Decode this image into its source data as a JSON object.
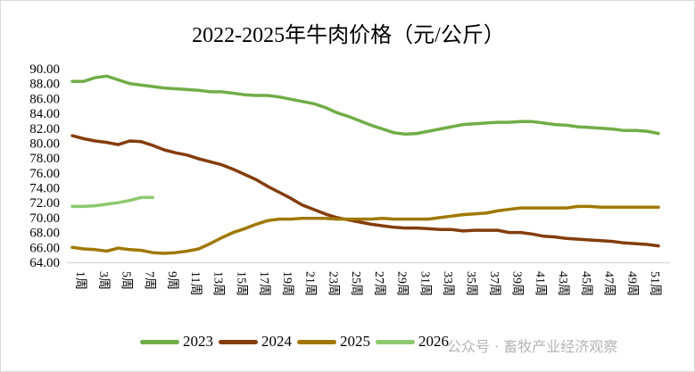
{
  "chart_data": {
    "type": "line",
    "title": "2022-2025年牛肉价格（元/公斤）",
    "xlabel": "",
    "ylabel": "",
    "ylim": [
      64,
      90
    ],
    "yticks": [
      "64.00",
      "66.00",
      "68.00",
      "70.00",
      "72.00",
      "74.00",
      "76.00",
      "78.00",
      "80.00",
      "82.00",
      "84.00",
      "86.00",
      "88.00",
      "90.00"
    ],
    "x_tick_labels": [
      "1周",
      "3周",
      "5周",
      "7周",
      "9周",
      "11周",
      "13周",
      "15周",
      "17周",
      "19周",
      "21周",
      "23周",
      "25周",
      "27周",
      "29周",
      "31周",
      "33周",
      "35周",
      "37周",
      "39周",
      "41周",
      "43周",
      "45周",
      "47周",
      "49周",
      "51周"
    ],
    "legend_position": "bottom",
    "series": [
      {
        "name": "2023",
        "color": "#70ad47",
        "values": [
          88.3,
          88.3,
          88.8,
          89.0,
          88.5,
          88.0,
          87.8,
          87.6,
          87.4,
          87.3,
          87.2,
          87.1,
          86.9,
          86.9,
          86.7,
          86.5,
          86.4,
          86.4,
          86.2,
          85.9,
          85.6,
          85.3,
          84.8,
          84.1,
          83.6,
          83.0,
          82.4,
          81.9,
          81.4,
          81.2,
          81.3,
          81.6,
          81.9,
          82.2,
          82.5,
          82.6,
          82.7,
          82.8,
          82.8,
          82.9,
          82.9,
          82.7,
          82.5,
          82.4,
          82.2,
          82.1,
          82.0,
          81.9,
          81.7,
          81.7,
          81.6,
          81.3
        ]
      },
      {
        "name": "2024",
        "color": "#843c0c",
        "values": [
          81.0,
          80.6,
          80.3,
          80.1,
          79.8,
          80.3,
          80.2,
          79.7,
          79.1,
          78.7,
          78.4,
          77.9,
          77.5,
          77.1,
          76.5,
          75.8,
          75.1,
          74.2,
          73.4,
          72.6,
          71.7,
          71.1,
          70.5,
          70.0,
          69.7,
          69.4,
          69.1,
          68.9,
          68.7,
          68.6,
          68.6,
          68.5,
          68.4,
          68.4,
          68.2,
          68.3,
          68.3,
          68.3,
          68.0,
          68.0,
          67.8,
          67.5,
          67.4,
          67.2,
          67.1,
          67.0,
          66.9,
          66.8,
          66.6,
          66.5,
          66.4,
          66.2
        ]
      },
      {
        "name": "2025",
        "color": "#a07800",
        "values": [
          66.0,
          65.8,
          65.7,
          65.5,
          65.9,
          65.7,
          65.6,
          65.3,
          65.2,
          65.3,
          65.5,
          65.8,
          66.5,
          67.3,
          68.0,
          68.5,
          69.1,
          69.6,
          69.8,
          69.8,
          69.9,
          69.9,
          69.9,
          69.8,
          69.8,
          69.8,
          69.8,
          69.9,
          69.8,
          69.8,
          69.8,
          69.8,
          70.0,
          70.2,
          70.4,
          70.5,
          70.6,
          70.9,
          71.1,
          71.3,
          71.3,
          71.3,
          71.3,
          71.3,
          71.5,
          71.5,
          71.4,
          71.4,
          71.4,
          71.4,
          71.4,
          71.4
        ]
      },
      {
        "name": "2026",
        "color": "#8cc96f",
        "values": [
          71.5,
          71.5,
          71.6,
          71.8,
          72.0,
          72.3,
          72.7,
          72.7
        ]
      }
    ]
  },
  "watermark": "公众号 · 畜牧产业经济观察"
}
